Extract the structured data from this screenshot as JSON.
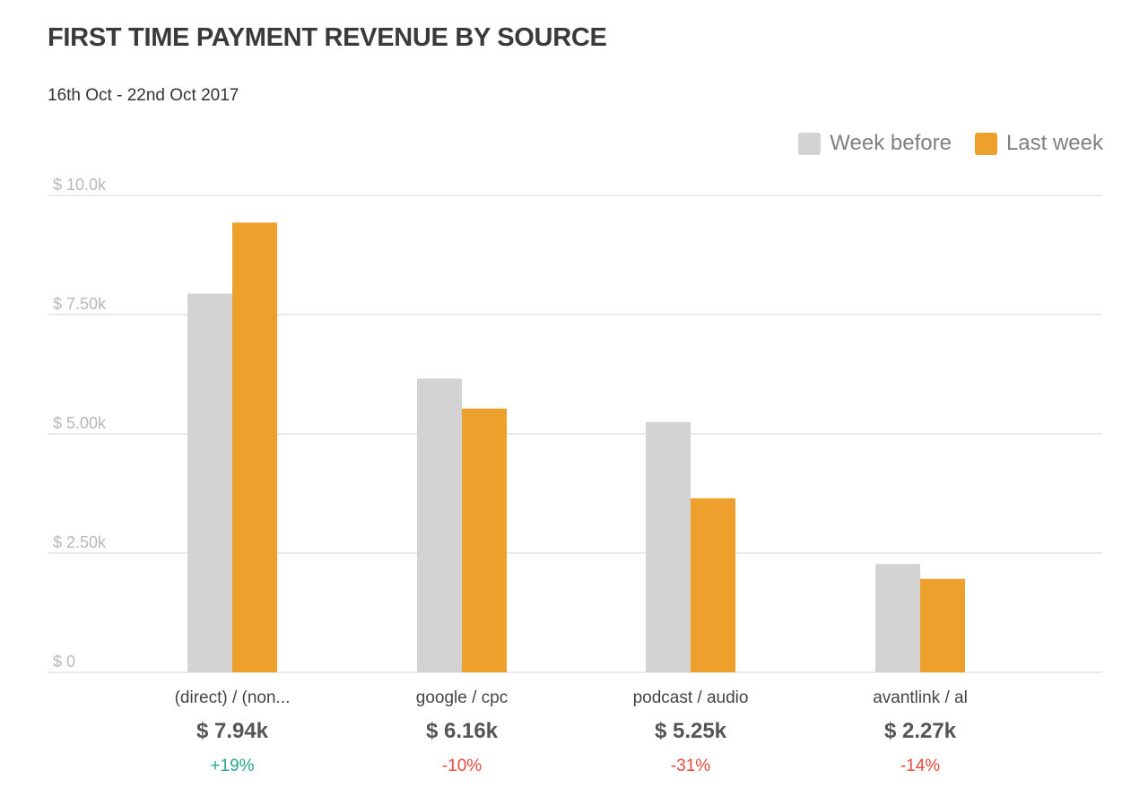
{
  "header": {
    "title": "FIRST TIME PAYMENT REVENUE BY SOURCE",
    "date_range": "16th Oct - 22nd Oct 2017"
  },
  "legend": [
    {
      "label": "Week before",
      "color": "#d3d3d3"
    },
    {
      "label": "Last week",
      "color": "#eda02c"
    }
  ],
  "summaries": [
    {
      "value": "$ 7.94k",
      "change": "+19%",
      "direction": "up"
    },
    {
      "value": "$ 6.16k",
      "change": "-10%",
      "direction": "down"
    },
    {
      "value": "$ 5.25k",
      "change": "-31%",
      "direction": "down"
    },
    {
      "value": "$ 2.27k",
      "change": "-14%",
      "direction": "down"
    }
  ],
  "colors": {
    "up": "#2aa58f",
    "down": "#e8493f",
    "grid": "#e3e3e3"
  },
  "chart_data": {
    "type": "bar",
    "categories": [
      "(direct) / (non...",
      "google / cpc",
      "podcast / audio",
      "avantlink / al"
    ],
    "series": [
      {
        "name": "Week before",
        "values": [
          7.94,
          6.16,
          5.25,
          2.27
        ]
      },
      {
        "name": "Last week",
        "values": [
          9.43,
          5.53,
          3.65,
          1.96
        ]
      }
    ],
    "yticks": [
      0,
      2.5,
      5,
      7.5,
      10
    ],
    "ytick_labels": [
      "$ 0",
      "$ 2.50k",
      "$ 5.00k",
      "$ 7.50k",
      "$ 10.0k"
    ],
    "ylim": [
      0,
      10
    ],
    "unit": "thousand dollars",
    "grid": true,
    "legend_position": "top-right",
    "title": "",
    "xlabel": "",
    "ylabel": ""
  }
}
